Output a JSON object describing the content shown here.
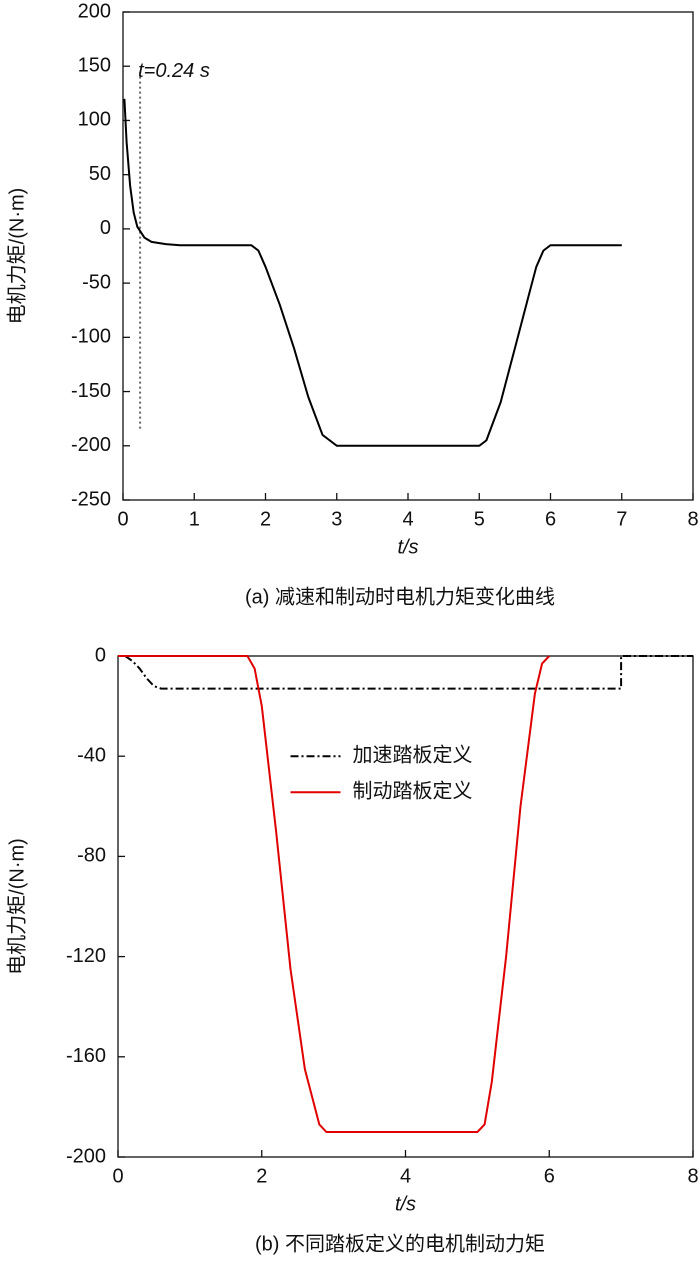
{
  "chart_data": [
    {
      "type": "line",
      "xlabel": "t/s",
      "ylabel": "电机力矩/(N·m)",
      "caption": "(a) 减速和制动时电机力矩变化曲线",
      "xlim": [
        0,
        8
      ],
      "ylim": [
        -250,
        200
      ],
      "xticks": [
        0,
        1,
        2,
        3,
        4,
        5,
        6,
        7,
        8
      ],
      "yticks": [
        -250,
        -200,
        -150,
        -100,
        -50,
        0,
        50,
        100,
        150,
        200
      ],
      "series": [
        {
          "color": "#000000",
          "dash": "solid",
          "x": [
            0.02,
            0.05,
            0.1,
            0.15,
            0.2,
            0.3,
            0.4,
            0.6,
            0.8,
            1.8,
            1.9,
            2.0,
            2.2,
            2.4,
            2.6,
            2.8,
            3.0,
            5.0,
            5.1,
            5.3,
            5.5,
            5.7,
            5.8,
            5.9,
            6.0,
            7.0
          ],
          "values": [
            120,
            80,
            40,
            15,
            2,
            -8,
            -12,
            -14,
            -15,
            -15,
            -20,
            -35,
            -70,
            -110,
            -155,
            -190,
            -200,
            -200,
            -195,
            -160,
            -110,
            -60,
            -35,
            -20,
            -15,
            -15
          ]
        }
      ],
      "vline": {
        "x": 0.24,
        "y": [
          145,
          -185
        ],
        "color": "#666666"
      },
      "annotation": {
        "text": "t=0.24 s"
      }
    },
    {
      "type": "line",
      "xlabel": "t/s",
      "ylabel": "电机力矩/(N·m)",
      "caption": "(b) 不同踏板定义的电机制动力矩",
      "xlim": [
        0,
        8
      ],
      "ylim": [
        -200,
        0
      ],
      "xticks": [
        0,
        2,
        4,
        6,
        8
      ],
      "yticks": [
        -200,
        -160,
        -120,
        -80,
        -40,
        0
      ],
      "legend": "center",
      "series": [
        {
          "name": "加速踏板定义",
          "color": "#000000",
          "dash": "dashdot",
          "x": [
            0.1,
            0.2,
            0.3,
            0.4,
            0.5,
            0.6,
            7.0,
            7.0,
            8.0
          ],
          "values": [
            0,
            -2,
            -5,
            -9,
            -12,
            -13,
            -13,
            0,
            0
          ]
        },
        {
          "name": "制动踏板定义",
          "color": "#e00000",
          "dash": "solid",
          "x": [
            0,
            1.8,
            1.9,
            2.0,
            2.2,
            2.4,
            2.6,
            2.8,
            2.9,
            3.0,
            5.0,
            5.1,
            5.2,
            5.4,
            5.6,
            5.8,
            5.9,
            6.0
          ],
          "values": [
            0,
            0,
            -5,
            -20,
            -70,
            -125,
            -165,
            -187,
            -190,
            -190,
            -190,
            -187,
            -170,
            -120,
            -60,
            -15,
            -3,
            0
          ]
        }
      ]
    }
  ]
}
